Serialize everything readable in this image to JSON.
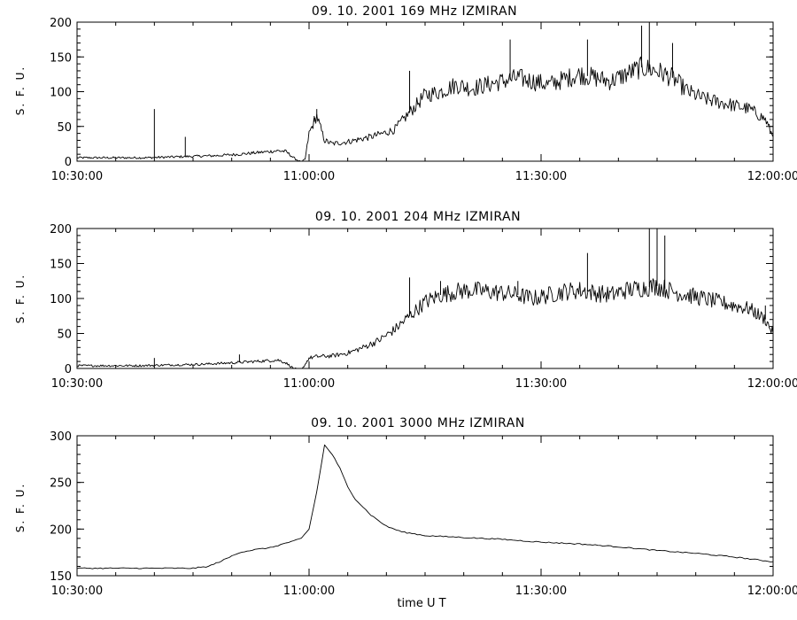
{
  "chart_data": [
    {
      "type": "line",
      "title": "09. 10. 2001    169 MHz    IZMIRAN",
      "ylabel": "S. F. U.",
      "xlabel": "",
      "ylim": [
        0,
        200
      ],
      "yticks": [
        0,
        50,
        100,
        150,
        200
      ],
      "xlim": [
        "10:30:00",
        "12:00:00"
      ],
      "xtick_labels": [
        "10:30:00",
        "11:00:00",
        "11:30:00",
        "12:00:00"
      ],
      "series": [
        {
          "x": [
            "10:30",
            "10:33",
            "10:36",
            "10:39",
            "10:42",
            "10:45",
            "10:48",
            "10:51",
            "10:54",
            "10:56",
            "10:57",
            "10:58",
            "10:59",
            "10:59:30",
            "11:00",
            "11:01",
            "11:02",
            "11:03",
            "11:05",
            "11:08",
            "11:11",
            "11:13",
            "11:15",
            "11:17",
            "11:19",
            "11:21",
            "11:23",
            "11:25",
            "11:27",
            "11:29",
            "11:31",
            "11:33",
            "11:35",
            "11:37",
            "11:39",
            "11:41",
            "11:43",
            "11:45",
            "11:47",
            "11:49",
            "11:51",
            "11:53",
            "11:55",
            "11:57",
            "11:59",
            "12:00"
          ],
          "values": [
            5,
            5,
            5,
            5,
            6,
            7,
            8,
            10,
            13,
            15,
            14,
            5,
            -2,
            3,
            40,
            65,
            30,
            25,
            28,
            35,
            45,
            70,
            95,
            100,
            110,
            105,
            110,
            115,
            120,
            115,
            110,
            118,
            125,
            120,
            115,
            125,
            135,
            130,
            120,
            100,
            90,
            85,
            80,
            75,
            60,
            35
          ],
          "spikes": [
            [
              "10:40",
              75
            ],
            [
              "10:44",
              35
            ],
            [
              "11:00:40",
              65
            ],
            [
              "11:01",
              75
            ],
            [
              "11:13",
              130
            ],
            [
              "11:26",
              175
            ],
            [
              "11:36",
              175
            ],
            [
              "11:43",
              195
            ],
            [
              "11:44",
              200
            ],
            [
              "11:47",
              170
            ]
          ]
        }
      ]
    },
    {
      "type": "line",
      "title": "09. 10. 2001    204 MHz    IZMIRAN",
      "ylabel": "S. F. U.",
      "xlabel": "",
      "ylim": [
        0,
        200
      ],
      "yticks": [
        0,
        50,
        100,
        150,
        200
      ],
      "xlim": [
        "10:30:00",
        "12:00:00"
      ],
      "xtick_labels": [
        "10:30:00",
        "11:00:00",
        "11:30:00",
        "12:00:00"
      ],
      "series": [
        {
          "x": [
            "10:30",
            "10:34",
            "10:38",
            "10:42",
            "10:46",
            "10:50",
            "10:53",
            "10:56",
            "10:57",
            "10:58",
            "10:59",
            "11:00",
            "11:01",
            "11:03",
            "11:05",
            "11:07",
            "11:09",
            "11:11",
            "11:13",
            "11:15",
            "11:17",
            "11:19",
            "11:21",
            "11:23",
            "11:25",
            "11:27",
            "11:29",
            "11:31",
            "11:33",
            "11:35",
            "11:37",
            "11:39",
            "11:41",
            "11:43",
            "11:45",
            "11:47",
            "11:49",
            "11:51",
            "11:53",
            "11:55",
            "11:57",
            "11:59",
            "12:00"
          ],
          "values": [
            4,
            4,
            4,
            5,
            6,
            8,
            10,
            12,
            8,
            0,
            -3,
            15,
            17,
            18,
            22,
            30,
            40,
            55,
            75,
            95,
            105,
            110,
            112,
            110,
            108,
            105,
            100,
            105,
            110,
            112,
            108,
            105,
            112,
            115,
            118,
            110,
            105,
            100,
            95,
            90,
            85,
            70,
            50
          ],
          "spikes": [
            [
              "10:40",
              15
            ],
            [
              "10:51",
              20
            ],
            [
              "11:13",
              130
            ],
            [
              "11:17",
              125
            ],
            [
              "11:27",
              125
            ],
            [
              "11:36",
              165
            ],
            [
              "11:44",
              200
            ],
            [
              "11:45",
              200
            ],
            [
              "11:46",
              190
            ],
            [
              "11:59",
              90
            ]
          ]
        }
      ]
    },
    {
      "type": "line",
      "title": "09. 10. 2001    3000 MHz    IZMIRAN",
      "ylabel": "S. F. U.",
      "xlabel": "time   U T",
      "ylim": [
        150,
        300
      ],
      "yticks": [
        150,
        200,
        250,
        300
      ],
      "xlim": [
        "10:30:00",
        "12:00:00"
      ],
      "xtick_labels": [
        "10:30:00",
        "11:00:00",
        "11:30:00",
        "12:00:00"
      ],
      "series": [
        {
          "x": [
            "10:30",
            "10:35",
            "10:40",
            "10:45",
            "10:47",
            "10:49",
            "10:51",
            "10:53",
            "10:55",
            "10:57",
            "10:58",
            "10:59",
            "11:00",
            "11:01",
            "11:02",
            "11:03",
            "11:04",
            "11:05",
            "11:06",
            "11:08",
            "11:10",
            "11:12",
            "11:15",
            "11:20",
            "11:25",
            "11:30",
            "11:35",
            "11:40",
            "11:45",
            "11:50",
            "11:55",
            "12:00"
          ],
          "values": [
            158,
            158,
            158,
            158,
            160,
            167,
            175,
            178,
            180,
            185,
            187,
            190,
            200,
            240,
            290,
            280,
            265,
            245,
            232,
            215,
            203,
            197,
            193,
            191,
            189,
            186,
            184,
            181,
            177,
            174,
            170,
            165
          ]
        }
      ]
    }
  ]
}
